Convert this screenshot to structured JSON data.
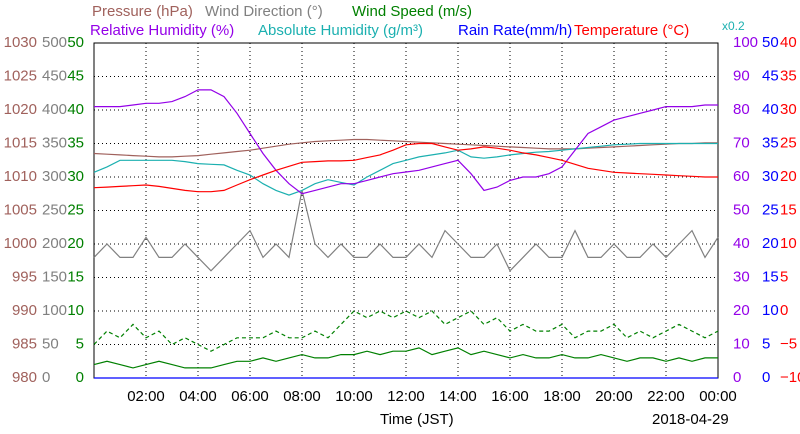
{
  "chart_data": {
    "type": "line",
    "xlabel": "Time (JST)",
    "date": "2018-04-29",
    "x": [
      0,
      0.5,
      1,
      1.5,
      2,
      2.5,
      3,
      3.5,
      4,
      4.5,
      5,
      5.5,
      6,
      6.5,
      7,
      7.5,
      8,
      8.5,
      9,
      9.5,
      10,
      10.5,
      11,
      11.5,
      12,
      12.5,
      13,
      13.5,
      14,
      14.5,
      15,
      15.5,
      16,
      16.5,
      17,
      17.5,
      18,
      18.5,
      19,
      19.5,
      20,
      20.5,
      21,
      21.5,
      22,
      22.5,
      23,
      23.5,
      24
    ],
    "xlim": [
      0,
      24
    ],
    "xticks": [
      {
        "value": 2,
        "label": "02:00"
      },
      {
        "value": 4,
        "label": "04:00"
      },
      {
        "value": 6,
        "label": "06:00"
      },
      {
        "value": 8,
        "label": "08:00"
      },
      {
        "value": 10,
        "label": "10:00"
      },
      {
        "value": 12,
        "label": "12:00"
      },
      {
        "value": 14,
        "label": "14:00"
      },
      {
        "value": 16,
        "label": "16:00"
      },
      {
        "value": 18,
        "label": "18:00"
      },
      {
        "value": 20,
        "label": "20:00"
      },
      {
        "value": 22,
        "label": "22:00"
      },
      {
        "value": 24,
        "label": "00:00"
      }
    ],
    "grid": true,
    "axes": [
      {
        "color": "#a0615c",
        "ylim": [
          980,
          1030
        ],
        "yticks": [
          980,
          985,
          990,
          995,
          1000,
          1005,
          1010,
          1015,
          1020,
          1025,
          1030
        ]
      },
      {
        "color": "#808080",
        "ylim": [
          0,
          500
        ],
        "yticks": [
          0,
          50,
          100,
          150,
          200,
          250,
          300,
          350,
          400,
          450,
          500
        ]
      },
      {
        "color": "#008000",
        "ylim": [
          0,
          50
        ],
        "yticks": [
          0,
          5,
          10,
          15,
          20,
          25,
          30,
          35,
          40,
          45,
          50
        ]
      },
      {
        "color": "#9400e8",
        "ylim": [
          0,
          100
        ],
        "yticks": [
          0,
          10,
          20,
          30,
          40,
          50,
          60,
          70,
          80,
          90,
          100
        ]
      },
      {
        "color": "#0000ff",
        "ylim": [
          0,
          50
        ],
        "yticks": [
          0,
          5,
          10,
          15,
          20,
          25,
          30,
          35,
          40,
          45,
          50
        ]
      },
      {
        "color": "#ff0000",
        "ylim": [
          -10,
          40
        ],
        "yticks": [
          {
            "value": -10,
            "label": "−10"
          },
          {
            "value": -5,
            "label": "−5"
          },
          0,
          5,
          10,
          15,
          20,
          25,
          30,
          35,
          40
        ]
      }
    ],
    "series": [
      {
        "name": "Pressure (hPa)",
        "color": "#a0615c",
        "axis": 0,
        "values": [
          1013.5,
          1013.4,
          1013.3,
          1013.2,
          1013.1,
          1013.0,
          1013.0,
          1013.1,
          1013.2,
          1013.4,
          1013.6,
          1013.8,
          1014.0,
          1014.3,
          1014.6,
          1014.9,
          1015.1,
          1015.3,
          1015.4,
          1015.5,
          1015.6,
          1015.6,
          1015.5,
          1015.4,
          1015.3,
          1015.2,
          1015.1,
          1015.0,
          1014.9,
          1014.8,
          1014.7,
          1014.6,
          1014.5,
          1014.4,
          1014.3,
          1014.2,
          1014.2,
          1014.2,
          1014.3,
          1014.4,
          1014.5,
          1014.6,
          1014.7,
          1014.8,
          1014.9,
          1015.0,
          1015.0,
          1015.1,
          1015.1
        ]
      },
      {
        "name": "Wind Direction (°)",
        "color": "#808080",
        "axis": 1,
        "values": [
          180,
          200,
          180,
          180,
          210,
          180,
          180,
          200,
          180,
          160,
          180,
          200,
          220,
          180,
          200,
          180,
          280,
          200,
          180,
          200,
          180,
          180,
          200,
          180,
          180,
          200,
          180,
          220,
          200,
          180,
          180,
          200,
          160,
          180,
          200,
          180,
          180,
          220,
          180,
          180,
          200,
          180,
          180,
          200,
          180,
          200,
          220,
          180,
          210
        ]
      },
      {
        "name": "Wind Speed (m/s)",
        "color": "#008000",
        "axis": 2,
        "values": [
          2,
          2.5,
          2,
          1.5,
          2,
          2.5,
          2,
          1.5,
          1.5,
          1.5,
          2,
          2.5,
          2.5,
          3,
          2.5,
          3,
          3.5,
          3,
          3,
          3.5,
          3.5,
          4,
          3.5,
          4,
          4,
          4.5,
          3.5,
          4,
          4.5,
          3.5,
          4,
          3.5,
          3,
          3.5,
          3,
          3,
          3.5,
          3,
          3,
          3.5,
          3,
          2.5,
          3,
          3,
          2.5,
          3,
          2.5,
          3,
          3
        ],
        "max_values": [
          5,
          7,
          6,
          8,
          6,
          7,
          5,
          6,
          5,
          4,
          5,
          6,
          6,
          6,
          7,
          6,
          6,
          7,
          6,
          8,
          10,
          9,
          10,
          9,
          10,
          9,
          10,
          8,
          9,
          10,
          8,
          9,
          7,
          8,
          7,
          7,
          8,
          6,
          7,
          7,
          8,
          6,
          7,
          6,
          7,
          8,
          7,
          6,
          7
        ]
      },
      {
        "name": "Relative Humidity (%)",
        "color": "#9400e8",
        "axis": 3,
        "values": [
          81,
          81,
          81,
          81.5,
          82,
          82,
          82.5,
          84,
          86,
          86,
          84,
          79,
          73,
          67,
          62,
          58,
          55,
          56,
          57,
          58,
          58,
          59,
          60,
          61,
          61.5,
          62,
          63,
          64,
          65,
          61,
          56,
          57,
          59,
          60,
          60,
          61,
          63,
          68,
          73,
          75,
          77,
          78,
          79,
          80,
          81,
          81,
          81,
          81.5,
          81.5
        ]
      },
      {
        "name": "Absolute Humidity (g/m³)",
        "color": "#1cb0b0",
        "axis": 4,
        "scale_label": "x0.2",
        "values": [
          30.7,
          31.5,
          32.5,
          32.5,
          32.5,
          32.5,
          32.5,
          32.3,
          32,
          31.9,
          31.8,
          31,
          30.3,
          29,
          28,
          27.3,
          28,
          29,
          29.6,
          29.2,
          28.8,
          30,
          31,
          32,
          32.5,
          33,
          33.3,
          33.6,
          34,
          33,
          32.8,
          33,
          33.3,
          33.5,
          33.7,
          33.8,
          34,
          34.2,
          34.4,
          34.6,
          34.8,
          34.9,
          35,
          35,
          35,
          35,
          35,
          35,
          35
        ]
      },
      {
        "name": "Rain Rate(mm/h)",
        "color": "#0000ff",
        "axis": 4,
        "values": [
          0,
          0,
          0,
          0,
          0,
          0,
          0,
          0,
          0,
          0,
          0,
          0,
          0,
          0,
          0,
          0,
          0,
          0,
          0,
          0,
          0,
          0,
          0,
          0,
          0,
          0,
          0,
          0,
          0,
          0,
          0,
          0,
          0,
          0,
          0,
          0,
          0,
          0,
          0,
          0,
          0,
          0,
          0,
          0,
          0,
          0,
          0,
          0,
          0
        ]
      },
      {
        "name": "Temperature (°C)",
        "color": "#ff0000",
        "axis": 5,
        "values": [
          18.4,
          18.5,
          18.6,
          18.7,
          18.8,
          18.6,
          18.3,
          18,
          17.8,
          17.8,
          18,
          18.8,
          19.6,
          20.3,
          21,
          21.6,
          22.2,
          22.3,
          22.4,
          22.4,
          22.5,
          22.9,
          23.3,
          24,
          24.8,
          25,
          25,
          24.5,
          24,
          24.2,
          24.5,
          24.3,
          24,
          23.6,
          23.3,
          22.9,
          22.5,
          21.9,
          21.3,
          21,
          20.7,
          20.6,
          20.5,
          20.4,
          20.3,
          20.2,
          20.1,
          20,
          20
        ]
      }
    ]
  }
}
